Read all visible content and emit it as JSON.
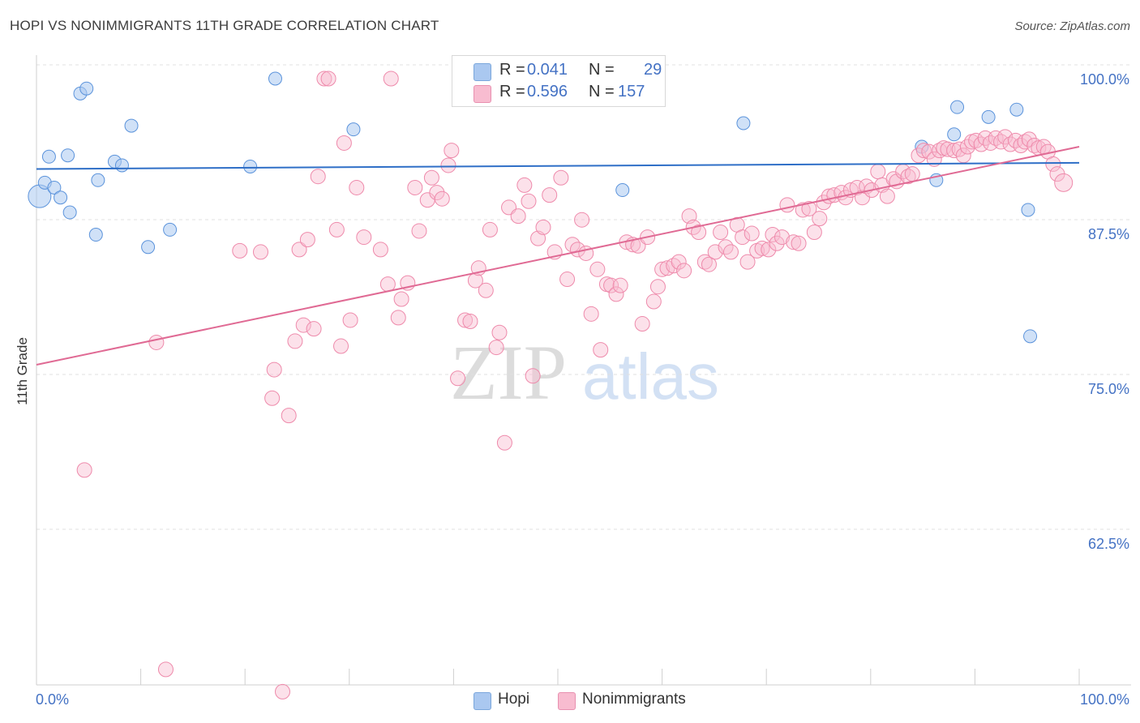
{
  "title": "HOPI VS NONIMMIGRANTS 11TH GRADE CORRELATION CHART",
  "source": "Source: ZipAtlas.com",
  "watermark": {
    "zip": "ZIP",
    "atlas": "atlas"
  },
  "stats": [
    {
      "r_label": "R =",
      "r_value": "0.041",
      "n_label": "N =",
      "n_value": "29",
      "color": "#aac8f0",
      "border": "#7aa6dc"
    },
    {
      "r_label": "R =",
      "r_value": "0.596",
      "n_label": "N =",
      "n_value": "157",
      "color": "#f8bcd0",
      "border": "#e890b0"
    }
  ],
  "legend": [
    {
      "label": "Hopi",
      "color": "#aac8f0",
      "border": "#7aa6dc"
    },
    {
      "label": "Nonimmigrants",
      "color": "#f8bcd0",
      "border": "#e890b0"
    }
  ],
  "chart_data": {
    "type": "scatter",
    "ylabel": "11th Grade",
    "xlim": [
      0,
      100
    ],
    "ylim": [
      50,
      101.5
    ],
    "x_tick_labels": [
      {
        "value": 0,
        "label": "0.0%"
      },
      {
        "value": 100,
        "label": "100.0%"
      }
    ],
    "y_tick_labels": [
      {
        "value": 100,
        "label": "100.0%"
      },
      {
        "value": 87.5,
        "label": "87.5%"
      },
      {
        "value": 75,
        "label": "75.0%"
      },
      {
        "value": 62.5,
        "label": "62.5%"
      }
    ],
    "grid": "horizontal dashed",
    "colors": {
      "hopi": "#5b93db",
      "hopi_line": "#2f6fc7",
      "non": "#ee8aab",
      "non_line": "#e06a94",
      "tick_label": "#4472c4"
    },
    "series": [
      {
        "name": "Hopi",
        "trend": [
          [
            0,
            92.7
          ],
          [
            100,
            93.2
          ]
        ],
        "points": [
          [
            0.3,
            90.5
          ],
          [
            0.8,
            91.6
          ],
          [
            1.2,
            93.7
          ],
          [
            1.7,
            91.2
          ],
          [
            2.3,
            90.4
          ],
          [
            3.0,
            93.8
          ],
          [
            3.2,
            89.2
          ],
          [
            4.2,
            98.8
          ],
          [
            4.8,
            99.2
          ],
          [
            5.7,
            87.4
          ],
          [
            5.9,
            91.8
          ],
          [
            7.5,
            93.3
          ],
          [
            8.2,
            93.0
          ],
          [
            9.1,
            96.2
          ],
          [
            10.7,
            86.4
          ],
          [
            12.8,
            87.8
          ],
          [
            20.5,
            92.9
          ],
          [
            22.9,
            100.0
          ],
          [
            30.4,
            95.9
          ],
          [
            56.2,
            91.0
          ],
          [
            67.8,
            96.4
          ],
          [
            84.9,
            94.5
          ],
          [
            86.3,
            91.8
          ],
          [
            88.0,
            95.5
          ],
          [
            88.3,
            97.7
          ],
          [
            91.3,
            96.9
          ],
          [
            94.0,
            97.5
          ],
          [
            95.1,
            89.4
          ],
          [
            95.3,
            79.2
          ]
        ]
      },
      {
        "name": "Nonimmigrants",
        "trend": [
          [
            0,
            76.9
          ],
          [
            100,
            94.5
          ]
        ],
        "points": [
          [
            4.6,
            68.4
          ],
          [
            11.5,
            78.7
          ],
          [
            12.4,
            52.3
          ],
          [
            19.5,
            86.1
          ],
          [
            21.5,
            86.0
          ],
          [
            22.6,
            74.2
          ],
          [
            22.8,
            76.5
          ],
          [
            23.6,
            50.5
          ],
          [
            24.2,
            72.8
          ],
          [
            24.8,
            78.8
          ],
          [
            25.2,
            86.2
          ],
          [
            25.6,
            80.1
          ],
          [
            26.0,
            87.0
          ],
          [
            26.6,
            79.8
          ],
          [
            27.0,
            92.1
          ],
          [
            27.6,
            100.0
          ],
          [
            28.0,
            100.0
          ],
          [
            28.8,
            87.8
          ],
          [
            29.2,
            78.4
          ],
          [
            29.5,
            94.8
          ],
          [
            30.1,
            80.5
          ],
          [
            30.7,
            91.2
          ],
          [
            31.4,
            87.2
          ],
          [
            33.0,
            86.2
          ],
          [
            33.7,
            83.4
          ],
          [
            34.0,
            100.0
          ],
          [
            34.7,
            80.7
          ],
          [
            35.0,
            82.2
          ],
          [
            35.6,
            83.5
          ],
          [
            36.3,
            91.2
          ],
          [
            36.7,
            87.7
          ],
          [
            37.5,
            90.2
          ],
          [
            37.9,
            92.0
          ],
          [
            38.4,
            90.8
          ],
          [
            38.9,
            90.3
          ],
          [
            39.5,
            93.0
          ],
          [
            39.8,
            94.2
          ],
          [
            40.4,
            75.8
          ],
          [
            41.1,
            80.5
          ],
          [
            41.6,
            80.4
          ],
          [
            42.1,
            83.7
          ],
          [
            42.4,
            84.7
          ],
          [
            43.1,
            82.9
          ],
          [
            43.5,
            87.8
          ],
          [
            44.1,
            78.3
          ],
          [
            44.4,
            79.5
          ],
          [
            44.9,
            70.6
          ],
          [
            45.3,
            89.6
          ],
          [
            46.2,
            88.9
          ],
          [
            46.8,
            91.4
          ],
          [
            47.2,
            90.1
          ],
          [
            47.6,
            76.0
          ],
          [
            48.1,
            87.1
          ],
          [
            48.6,
            88.0
          ],
          [
            49.2,
            90.6
          ],
          [
            49.7,
            86.0
          ],
          [
            50.3,
            92.0
          ],
          [
            50.9,
            83.8
          ],
          [
            51.4,
            86.6
          ],
          [
            51.9,
            86.2
          ],
          [
            52.3,
            88.6
          ],
          [
            52.7,
            85.9
          ],
          [
            53.2,
            81.0
          ],
          [
            53.8,
            84.6
          ],
          [
            54.1,
            78.1
          ],
          [
            54.7,
            83.4
          ],
          [
            55.1,
            83.3
          ],
          [
            55.6,
            82.6
          ],
          [
            56.0,
            83.3
          ],
          [
            56.6,
            86.8
          ],
          [
            57.2,
            86.6
          ],
          [
            57.7,
            86.5
          ],
          [
            58.1,
            80.2
          ],
          [
            58.6,
            87.2
          ],
          [
            59.2,
            82.0
          ],
          [
            59.6,
            83.2
          ],
          [
            60.0,
            84.6
          ],
          [
            60.5,
            84.7
          ],
          [
            61.1,
            84.9
          ],
          [
            61.6,
            85.2
          ],
          [
            62.1,
            84.5
          ],
          [
            62.6,
            88.9
          ],
          [
            63.0,
            88.0
          ],
          [
            63.5,
            87.6
          ],
          [
            64.1,
            85.2
          ],
          [
            64.5,
            85.0
          ],
          [
            65.1,
            86.0
          ],
          [
            65.6,
            87.6
          ],
          [
            66.1,
            86.4
          ],
          [
            66.6,
            86.0
          ],
          [
            67.2,
            88.2
          ],
          [
            67.7,
            87.2
          ],
          [
            68.2,
            85.2
          ],
          [
            68.6,
            87.5
          ],
          [
            69.1,
            86.1
          ],
          [
            69.6,
            86.3
          ],
          [
            70.2,
            86.2
          ],
          [
            70.6,
            87.4
          ],
          [
            71.0,
            86.7
          ],
          [
            71.5,
            87.2
          ],
          [
            72.0,
            89.8
          ],
          [
            72.6,
            86.8
          ],
          [
            73.1,
            86.7
          ],
          [
            73.5,
            89.4
          ],
          [
            74.1,
            89.5
          ],
          [
            74.6,
            87.6
          ],
          [
            75.1,
            88.7
          ],
          [
            75.5,
            90.0
          ],
          [
            76.0,
            90.5
          ],
          [
            76.5,
            90.6
          ],
          [
            77.2,
            90.8
          ],
          [
            77.6,
            90.4
          ],
          [
            78.1,
            91.0
          ],
          [
            78.7,
            91.2
          ],
          [
            79.2,
            90.4
          ],
          [
            79.6,
            91.3
          ],
          [
            80.1,
            91.0
          ],
          [
            80.7,
            92.5
          ],
          [
            81.1,
            91.4
          ],
          [
            81.6,
            90.5
          ],
          [
            82.2,
            91.9
          ],
          [
            82.5,
            91.7
          ],
          [
            83.1,
            92.5
          ],
          [
            83.6,
            92.1
          ],
          [
            84.0,
            92.3
          ],
          [
            84.6,
            93.8
          ],
          [
            85.1,
            94.2
          ],
          [
            85.6,
            94.1
          ],
          [
            86.1,
            93.5
          ],
          [
            86.6,
            94.2
          ],
          [
            87.0,
            94.4
          ],
          [
            87.4,
            94.3
          ],
          [
            88.0,
            94.2
          ],
          [
            88.5,
            94.3
          ],
          [
            88.9,
            93.8
          ],
          [
            89.3,
            94.5
          ],
          [
            89.7,
            94.9
          ],
          [
            90.1,
            95.0
          ],
          [
            90.6,
            94.7
          ],
          [
            91.0,
            95.2
          ],
          [
            91.5,
            94.8
          ],
          [
            92.0,
            95.2
          ],
          [
            92.5,
            94.9
          ],
          [
            92.9,
            95.3
          ],
          [
            93.4,
            94.7
          ],
          [
            93.9,
            95.0
          ],
          [
            94.4,
            94.6
          ],
          [
            94.8,
            94.9
          ],
          [
            95.2,
            95.1
          ],
          [
            95.7,
            94.6
          ],
          [
            96.1,
            94.4
          ],
          [
            96.6,
            94.5
          ],
          [
            97.0,
            94.1
          ],
          [
            97.5,
            93.1
          ],
          [
            97.9,
            92.3
          ],
          [
            98.5,
            91.6
          ]
        ]
      }
    ]
  }
}
